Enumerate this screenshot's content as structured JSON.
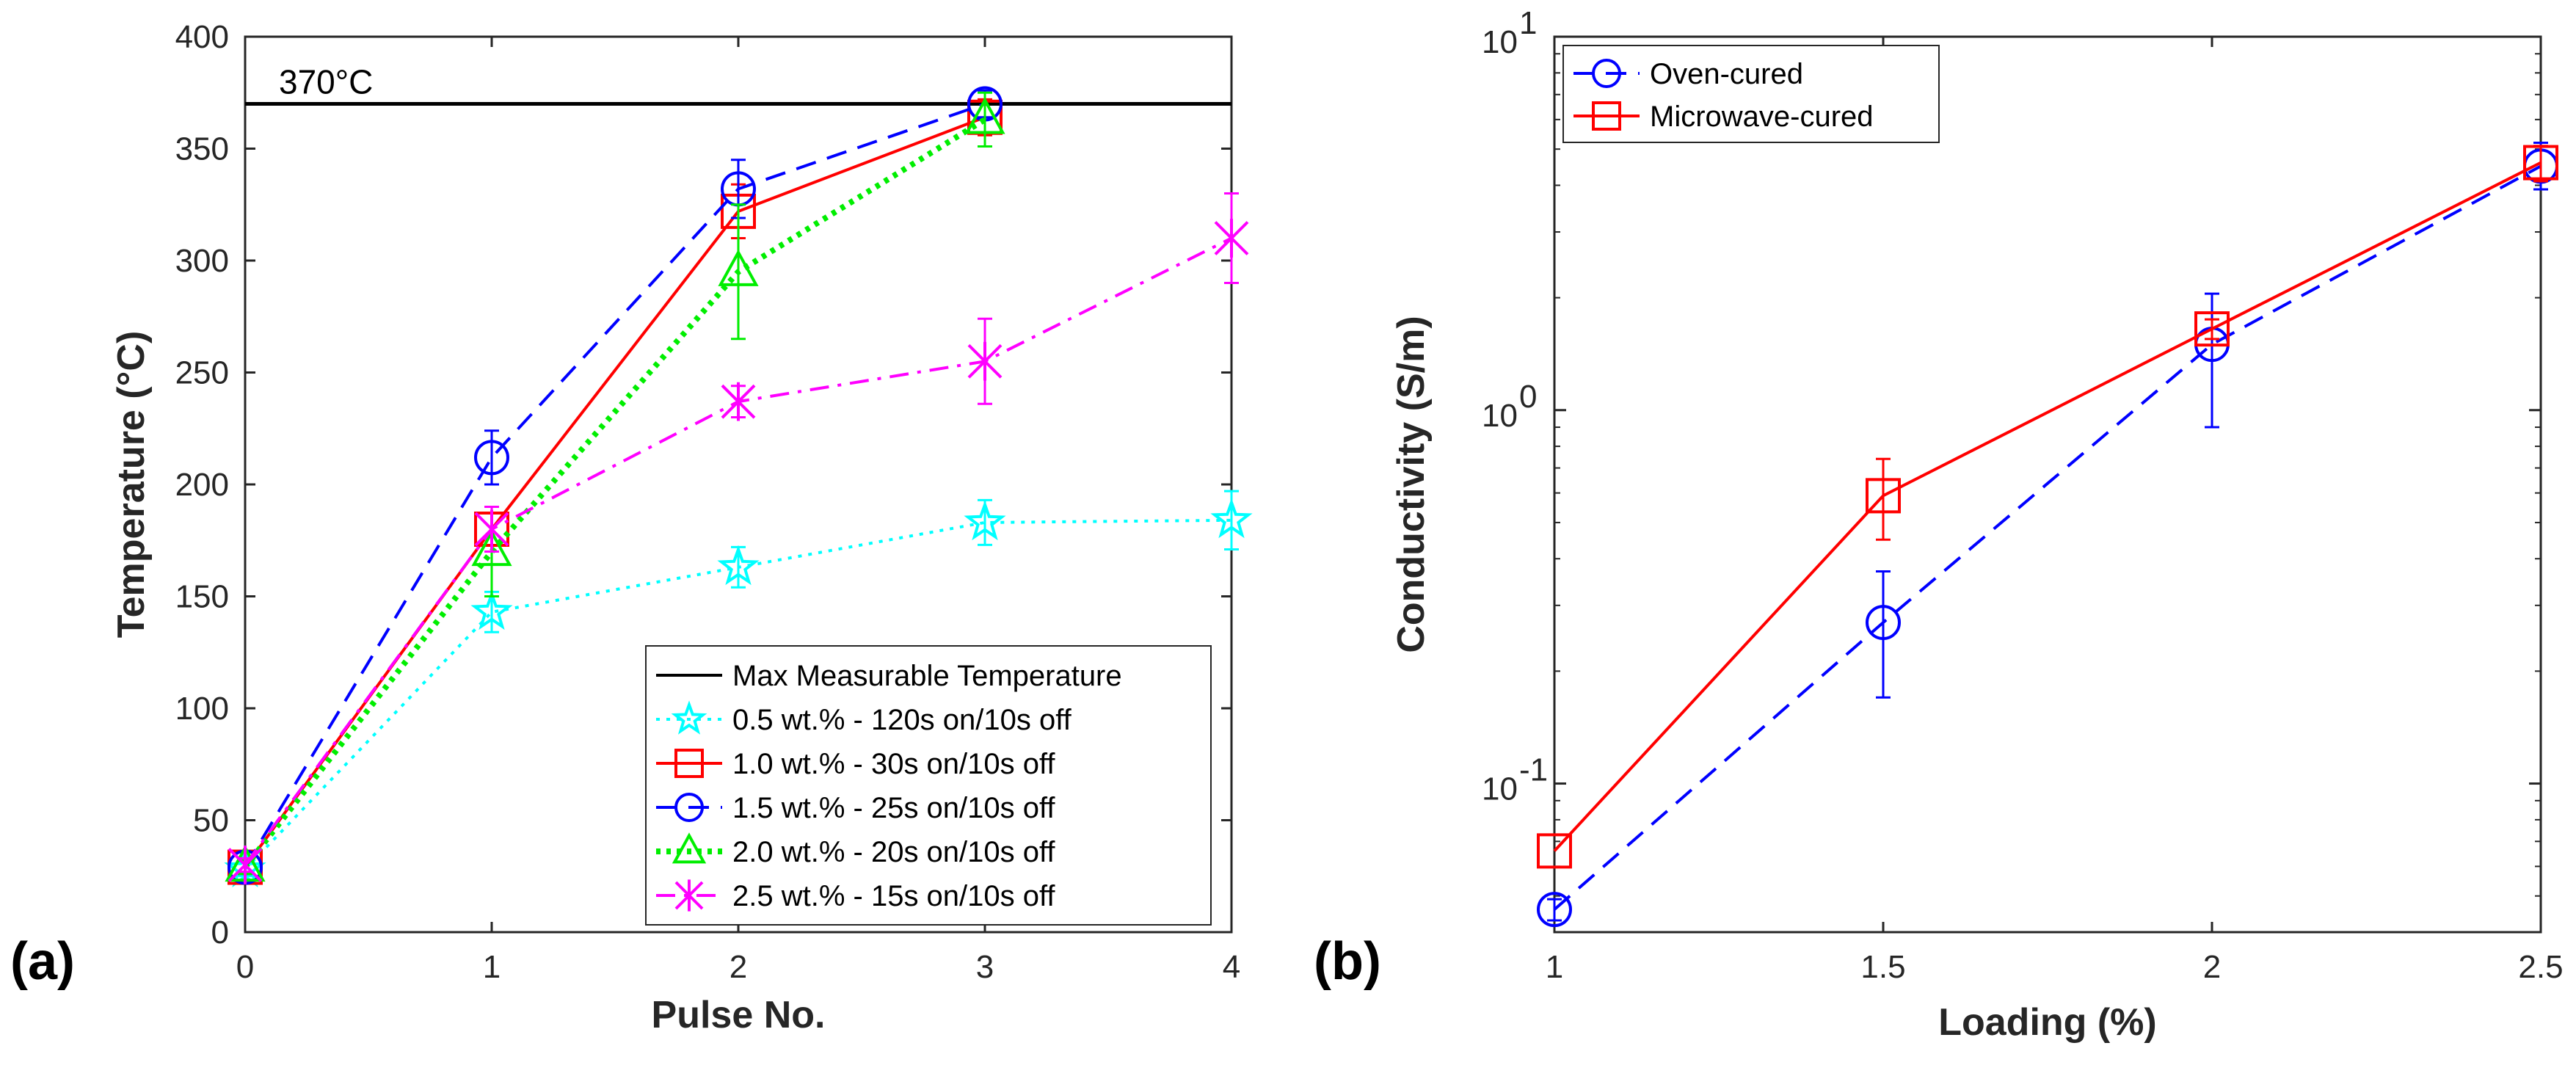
{
  "chart_data": [
    {
      "type": "line",
      "panel_label": "(a)",
      "xlabel": "Pulse No.",
      "ylabel": "Temperature (°C)",
      "xlim": [
        0,
        4
      ],
      "ylim": [
        0,
        400
      ],
      "xticks": [
        "0",
        "1",
        "2",
        "3",
        "4"
      ],
      "yticks": [
        "0",
        "50",
        "100",
        "150",
        "200",
        "250",
        "300",
        "350",
        "400"
      ],
      "reference_line": {
        "name": "Max Measurable Temperature",
        "y": 370,
        "label": "370°C",
        "color": "#000000"
      },
      "legend_position": "bottom-right",
      "series": [
        {
          "name": "0.5 wt.% - 120s on/10s off",
          "color": "#00ffff",
          "marker": "star",
          "style": "dotted",
          "x": [
            0,
            1,
            2,
            3,
            4
          ],
          "y": [
            28,
            143,
            163,
            183,
            184
          ],
          "err": [
            3,
            9,
            9,
            10,
            13
          ]
        },
        {
          "name": "1.0 wt.% - 30s on/10s off",
          "color": "#ff0000",
          "marker": "square",
          "style": "solid",
          "x": [
            0,
            1,
            2,
            3
          ],
          "y": [
            29,
            180,
            322,
            364
          ],
          "err": [
            3,
            10,
            12,
            8
          ]
        },
        {
          "name": "1.5 wt.% - 25s on/10s off",
          "color": "#0000ff",
          "marker": "circle",
          "style": "dashed",
          "x": [
            0,
            1,
            2,
            3
          ],
          "y": [
            29,
            212,
            332,
            370
          ],
          "err": [
            3,
            12,
            13,
            6
          ]
        },
        {
          "name": "2.0 wt.% - 20s on/10s off",
          "color": "#00ee00",
          "marker": "triangle",
          "style": "dotted-thick",
          "x": [
            0,
            1,
            2,
            3
          ],
          "y": [
            29,
            170,
            295,
            363
          ],
          "err": [
            3,
            20,
            30,
            12
          ]
        },
        {
          "name": "2.5 wt.% - 15s on/10s off",
          "color": "#ff00ff",
          "marker": "x",
          "style": "dashdot",
          "x": [
            0,
            1,
            2,
            3,
            4
          ],
          "y": [
            30,
            180,
            237,
            255,
            310
          ],
          "err": [
            3,
            10,
            7,
            19,
            20
          ]
        }
      ]
    },
    {
      "type": "line",
      "panel_label": "(b)",
      "xlabel": "Loading (%)",
      "ylabel": "Conductivity (S/m)",
      "yscale": "log",
      "xlim": [
        1,
        2.5
      ],
      "ylim": [
        0.04,
        10
      ],
      "xticks": [
        "1",
        "1.5",
        "2",
        "2.5"
      ],
      "yticks": [
        {
          "value": 10,
          "base": "10",
          "exp": "1"
        },
        {
          "value": 1,
          "base": "10",
          "exp": "0"
        },
        {
          "value": 0.1,
          "base": "10",
          "exp": "-1"
        }
      ],
      "legend_position": "top-left",
      "series": [
        {
          "name": "Oven-cured",
          "color": "#0000ff",
          "marker": "circle",
          "style": "dashed",
          "x": [
            1,
            1.5,
            2,
            2.5
          ],
          "y": [
            0.046,
            0.27,
            1.5,
            4.5
          ],
          "err_low": [
            0.043,
            0.17,
            0.9,
            3.9
          ],
          "err_high": [
            0.049,
            0.37,
            2.05,
            5.2
          ]
        },
        {
          "name": "Microwave-cured",
          "color": "#ff0000",
          "marker": "square",
          "style": "solid",
          "x": [
            1,
            1.5,
            2,
            2.5
          ],
          "y": [
            0.066,
            0.59,
            1.65,
            4.6
          ],
          "err_low": [
            0.066,
            0.45,
            1.55,
            4.1
          ],
          "err_high": [
            0.066,
            0.74,
            1.75,
            5.1
          ]
        }
      ]
    }
  ]
}
